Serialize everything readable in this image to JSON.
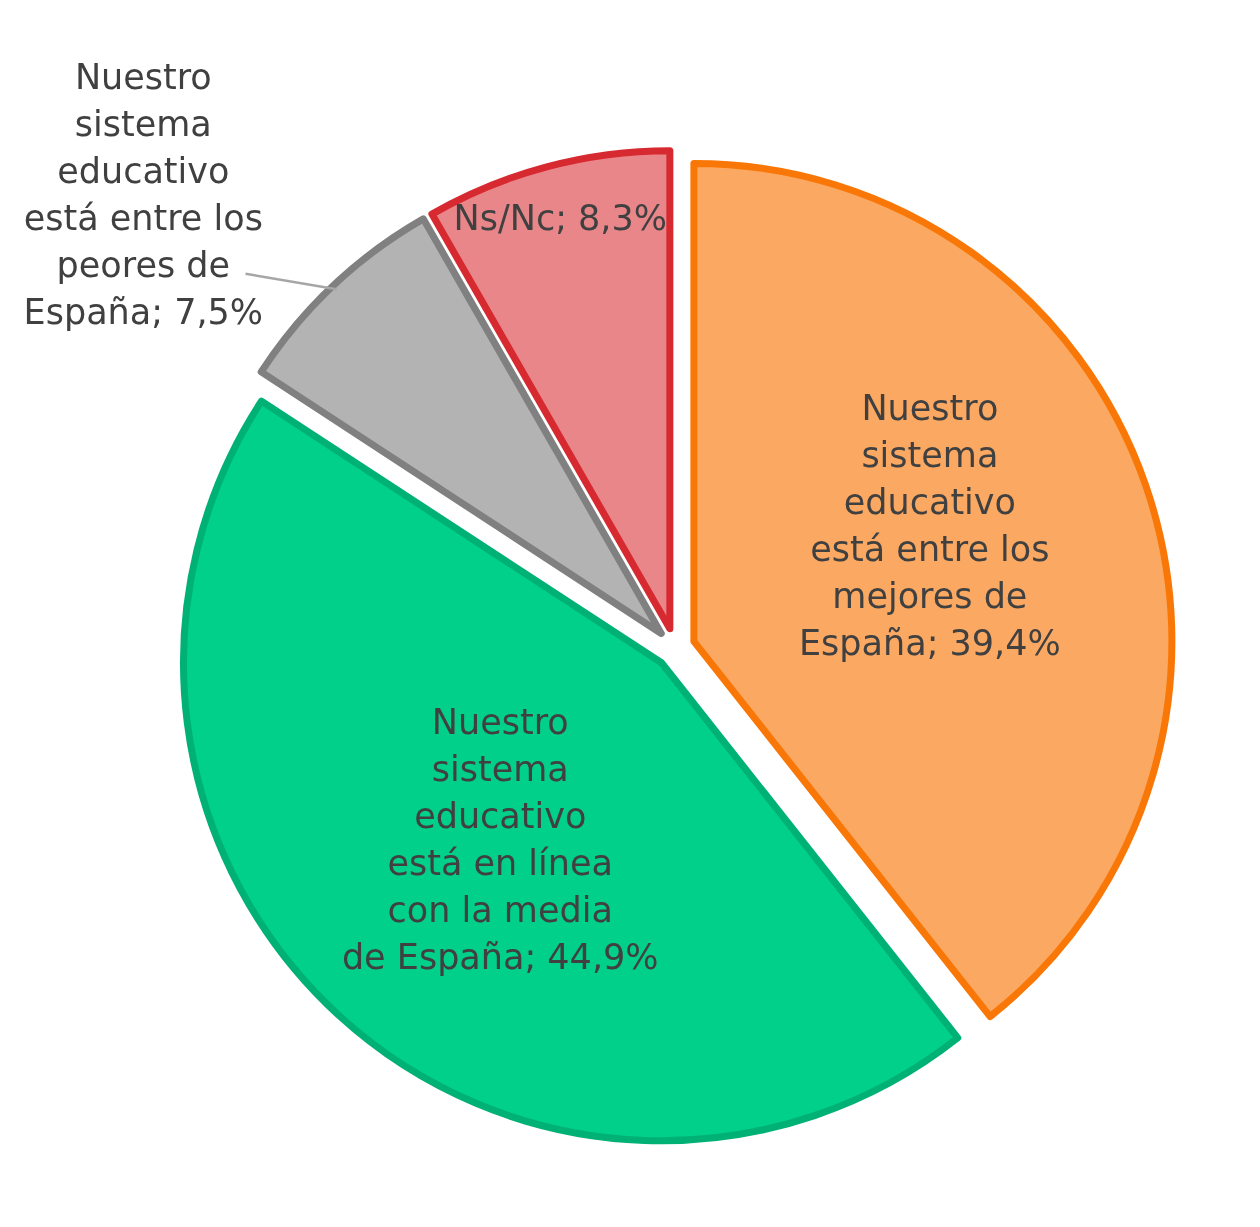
{
  "chart_data": {
    "type": "pie",
    "categories": [
      "Nuestro sistema educativo está entre los mejores de España",
      "Nuestro sistema educativo está en línea con la media de España",
      "Nuestro sistema educativo está entre los peores de España",
      "Ns/Nc"
    ],
    "values": [
      39.4,
      44.9,
      7.5,
      8.3
    ],
    "value_labels": [
      "39,4%",
      "44,9%",
      "7,5%",
      "8,3%"
    ],
    "colors": [
      "#fba962",
      "#00d08a",
      "#b3b3b3",
      "#e8868a"
    ]
  }
}
